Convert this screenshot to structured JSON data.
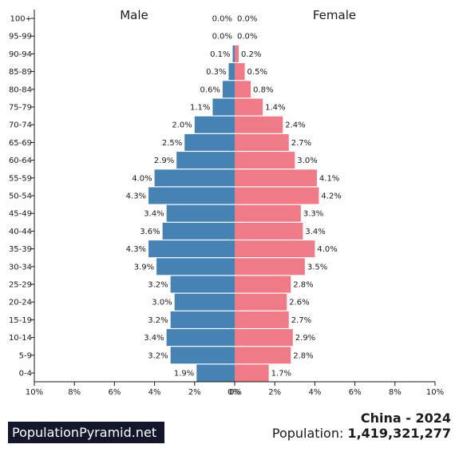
{
  "chart_data": {
    "type": "bar",
    "orientation": "horizontal-pyramid",
    "categories": [
      "100+",
      "95-99",
      "90-94",
      "85-89",
      "80-84",
      "75-79",
      "70-74",
      "65-69",
      "60-64",
      "55-59",
      "50-54",
      "45-49",
      "40-44",
      "35-39",
      "30-34",
      "25-29",
      "20-24",
      "15-19",
      "10-14",
      "5-9",
      "0-4"
    ],
    "series": [
      {
        "name": "Male",
        "color": "#4682b4",
        "values": [
          0.0,
          0.0,
          0.1,
          0.3,
          0.6,
          1.1,
          2.0,
          2.5,
          2.9,
          4.0,
          4.3,
          3.4,
          3.6,
          4.3,
          3.9,
          3.2,
          3.0,
          3.2,
          3.4,
          3.2,
          1.9
        ],
        "value_labels": [
          "0.0%",
          "0.0%",
          "0.1%",
          "0.3%",
          "0.6%",
          "1.1%",
          "2.0%",
          "2.5%",
          "2.9%",
          "4.0%",
          "4.3%",
          "3.4%",
          "3.6%",
          "4.3%",
          "3.9%",
          "3.2%",
          "3.0%",
          "3.2%",
          "3.4%",
          "3.2%",
          "1.9%"
        ]
      },
      {
        "name": "Female",
        "color": "#ef7a88",
        "values": [
          0.0,
          0.0,
          0.2,
          0.5,
          0.8,
          1.4,
          2.4,
          2.7,
          3.0,
          4.1,
          4.2,
          3.3,
          3.4,
          4.0,
          3.5,
          2.8,
          2.6,
          2.7,
          2.9,
          2.8,
          1.7
        ],
        "value_labels": [
          "0.0%",
          "0.0%",
          "0.2%",
          "0.5%",
          "0.8%",
          "1.4%",
          "2.4%",
          "2.7%",
          "3.0%",
          "4.1%",
          "4.2%",
          "3.3%",
          "3.4%",
          "4.0%",
          "3.5%",
          "2.8%",
          "2.6%",
          "2.7%",
          "2.9%",
          "2.8%",
          "1.7%"
        ]
      }
    ],
    "x_range": [
      0,
      10
    ],
    "x_ticks_male": [
      "10%",
      "8%",
      "6%",
      "4%",
      "2%",
      "0%"
    ],
    "x_ticks_female": [
      "0%",
      "2%",
      "4%",
      "6%",
      "8%",
      "10%"
    ],
    "grid": false,
    "legend": "none"
  },
  "brand": "PopulationPyramid.net",
  "country_year": "China - 2024",
  "population_label": "Population:",
  "population_value": "1,419,321,277"
}
